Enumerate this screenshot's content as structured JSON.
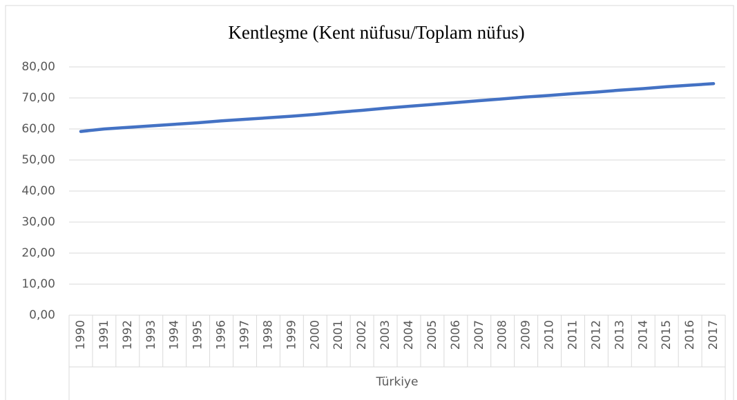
{
  "chart_data": {
    "type": "line",
    "title": "Kentleşme (Kent nüfusu/Toplam nüfus)",
    "categories": [
      "1990",
      "1991",
      "1992",
      "1993",
      "1994",
      "1995",
      "1996",
      "1997",
      "1998",
      "1999",
      "2000",
      "2001",
      "2002",
      "2003",
      "2004",
      "2005",
      "2006",
      "2007",
      "2008",
      "2009",
      "2010",
      "2011",
      "2012",
      "2013",
      "2014",
      "2015",
      "2016",
      "2017"
    ],
    "category_group": "Türkiye",
    "series": [
      {
        "name": "Türkiye",
        "color": "#4472c4",
        "values": [
          59.2,
          60.0,
          60.5,
          61.0,
          61.5,
          62.0,
          62.6,
          63.1,
          63.6,
          64.1,
          64.7,
          65.4,
          66.0,
          66.7,
          67.3,
          67.9,
          68.5,
          69.1,
          69.7,
          70.3,
          70.8,
          71.4,
          71.9,
          72.5,
          73.0,
          73.6,
          74.1,
          74.6
        ]
      }
    ],
    "ylim": [
      0,
      80
    ],
    "yticks": [
      {
        "value": 0,
        "label": "0,00"
      },
      {
        "value": 10,
        "label": "10,00"
      },
      {
        "value": 20,
        "label": "20,00"
      },
      {
        "value": 30,
        "label": "30,00"
      },
      {
        "value": 40,
        "label": "40,00"
      },
      {
        "value": 50,
        "label": "50,00"
      },
      {
        "value": 60,
        "label": "60,00"
      },
      {
        "value": 70,
        "label": "70,00"
      },
      {
        "value": 80,
        "label": "80,00"
      }
    ],
    "grid": true
  }
}
